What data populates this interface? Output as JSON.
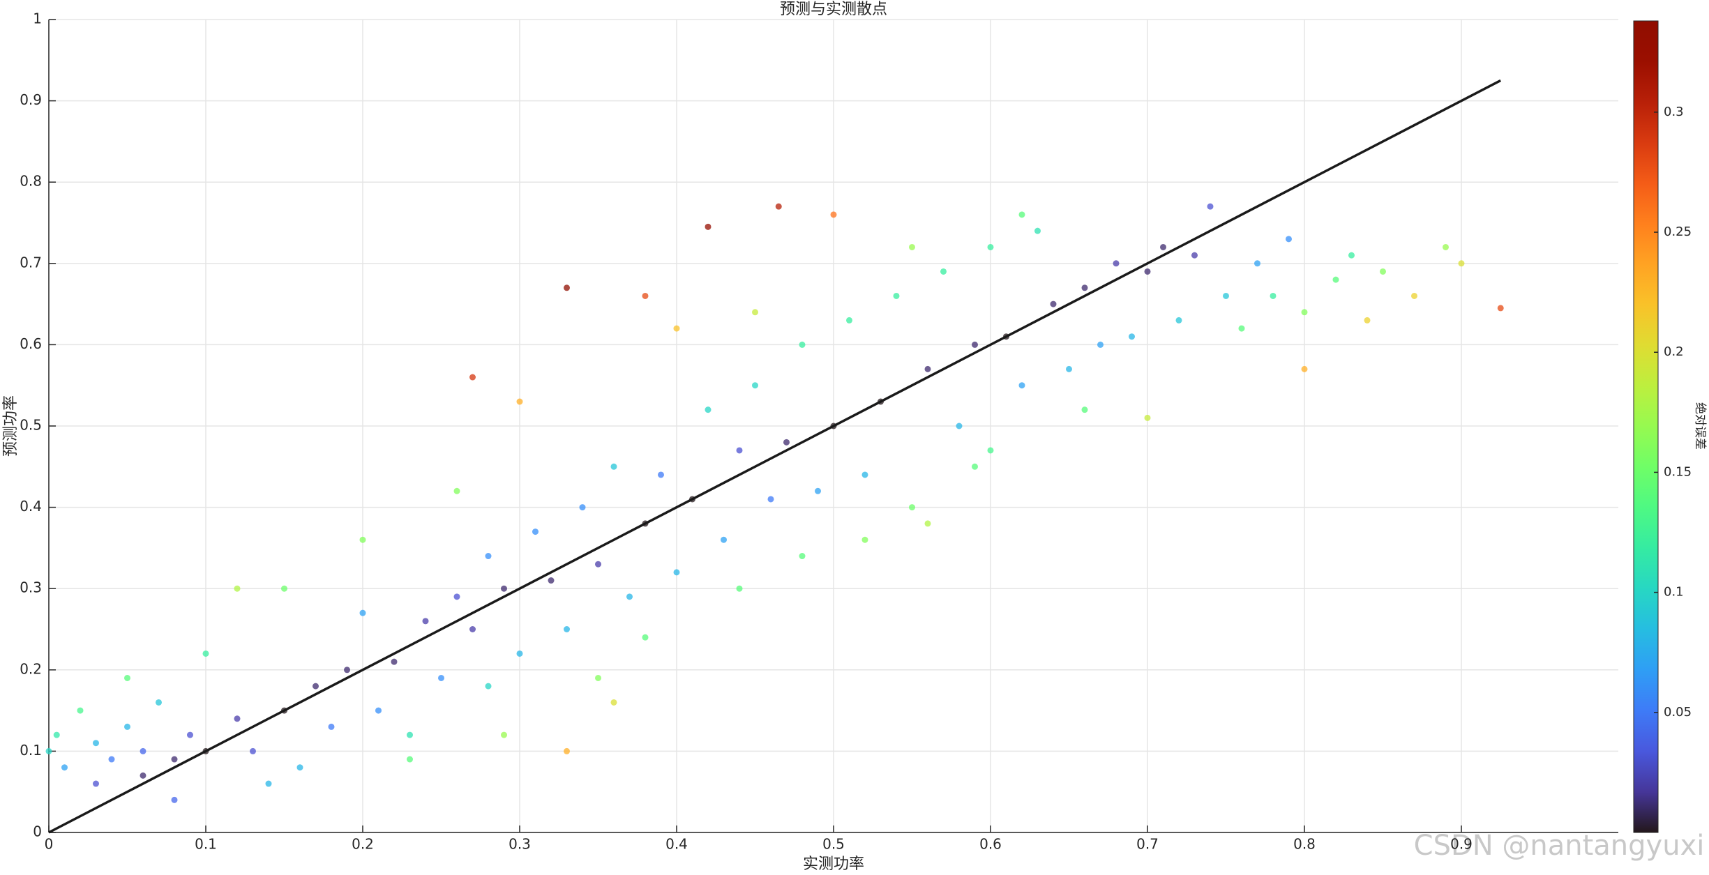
{
  "chart_data": {
    "type": "scatter",
    "title": "预测与实测散点",
    "x_label": "实测功率",
    "y_label": "预测功率",
    "colorbar_label": "绝对误差",
    "colormap": "turbo",
    "clim": [
      0,
      0.338
    ],
    "cticks": [
      0.05,
      0.1,
      0.15,
      0.2,
      0.25,
      0.3
    ],
    "xlim": [
      0,
      1
    ],
    "ylim": [
      0,
      1
    ],
    "xticks": [
      0,
      0.1,
      0.2,
      0.3,
      0.4,
      0.5,
      0.6,
      0.7,
      0.8,
      0.9
    ],
    "yticks": [
      0,
      0.1,
      0.2,
      0.3,
      0.4,
      0.5,
      0.6,
      0.7,
      0.8,
      0.9,
      1
    ],
    "grid": true,
    "series": [
      {
        "x": [
          0,
          0.005,
          0.01,
          0.02,
          0.03,
          0.04,
          0.05,
          0.06,
          0.07,
          0.08,
          0.09,
          0.1,
          0.03,
          0.06,
          0.1,
          0.12,
          0.13,
          0.15,
          0.15,
          0.16,
          0.17,
          0.18,
          0.19,
          0.2,
          0.21,
          0.22,
          0.23,
          0.24,
          0.25,
          0.26,
          0.27,
          0.28,
          0.28,
          0.29,
          0.3,
          0.31,
          0.32,
          0.33,
          0.33,
          0.34,
          0.35,
          0.36,
          0.37,
          0.38,
          0.38,
          0.39,
          0.4,
          0.41,
          0.42,
          0.42,
          0.43,
          0.44,
          0.45,
          0.46,
          0.465,
          0.47,
          0.48,
          0.49,
          0.5,
          0.51,
          0.52,
          0.53,
          0.54,
          0.55,
          0.56,
          0.57,
          0.58,
          0.59,
          0.6,
          0.6,
          0.61,
          0.62,
          0.63,
          0.64,
          0.65,
          0.66,
          0.67,
          0.68,
          0.69,
          0.7,
          0.7,
          0.71,
          0.72,
          0.73,
          0.74,
          0.75,
          0.76,
          0.77,
          0.78,
          0.79,
          0.8,
          0.8,
          0.82,
          0.83,
          0.84,
          0.85,
          0.87,
          0.89,
          0.9,
          0.925,
          0.27,
          0.33,
          0.23,
          0.29,
          0.35,
          0.36,
          0.44,
          0.52,
          0.56,
          0.59,
          0.4,
          0.5,
          0.3,
          0.26,
          0.2,
          0.12,
          0.05,
          0.08,
          0.14,
          0.66,
          0.45,
          0.55,
          0.62,
          0.48,
          0.38
        ],
        "y": [
          0.1,
          0.12,
          0.08,
          0.15,
          0.11,
          0.09,
          0.13,
          0.1,
          0.16,
          0.09,
          0.12,
          0.1,
          0.06,
          0.07,
          0.22,
          0.14,
          0.1,
          0.3,
          0.15,
          0.08,
          0.18,
          0.13,
          0.2,
          0.27,
          0.15,
          0.21,
          0.12,
          0.26,
          0.19,
          0.29,
          0.25,
          0.34,
          0.18,
          0.3,
          0.22,
          0.37,
          0.31,
          0.25,
          0.67,
          0.4,
          0.33,
          0.45,
          0.29,
          0.38,
          0.66,
          0.44,
          0.32,
          0.41,
          0.52,
          0.745,
          0.36,
          0.47,
          0.55,
          0.41,
          0.77,
          0.48,
          0.6,
          0.42,
          0.5,
          0.63,
          0.44,
          0.53,
          0.66,
          0.4,
          0.57,
          0.69,
          0.5,
          0.6,
          0.72,
          0.47,
          0.61,
          0.55,
          0.74,
          0.65,
          0.57,
          0.67,
          0.6,
          0.7,
          0.61,
          0.69,
          0.51,
          0.72,
          0.63,
          0.71,
          0.77,
          0.66,
          0.62,
          0.7,
          0.66,
          0.73,
          0.64,
          0.57,
          0.68,
          0.71,
          0.63,
          0.69,
          0.66,
          0.72,
          0.7,
          0.645,
          0.56,
          0.1,
          0.09,
          0.12,
          0.19,
          0.16,
          0.3,
          0.36,
          0.38,
          0.45,
          0.62,
          0.76,
          0.53,
          0.42,
          0.36,
          0.3,
          0.19,
          0.04,
          0.06,
          0.52,
          0.64,
          0.72,
          0.76,
          0.34,
          0.24
        ]
      }
    ],
    "reference_line": {
      "x": [
        0,
        0.925
      ],
      "y": [
        0,
        0.925
      ],
      "color": "#1a1a1a"
    },
    "watermark": "CSDN @nantangyuxi"
  }
}
